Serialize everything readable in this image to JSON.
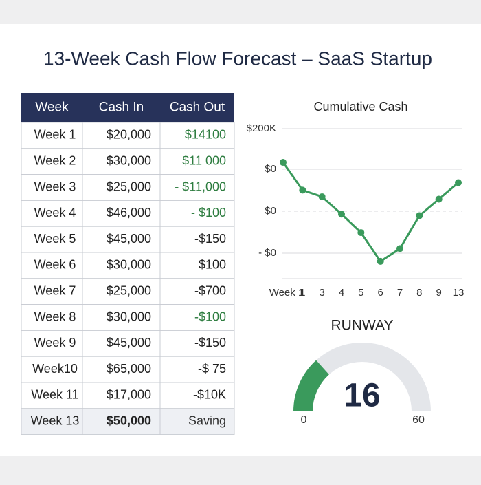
{
  "title": "13-Week Cash Flow Forecast – SaaS Startup",
  "table": {
    "headers": [
      "Week",
      "Cash In",
      "Cash Out"
    ],
    "rows": [
      [
        "Week 1",
        "$20,000",
        "$14100"
      ],
      [
        "Week 2",
        "$30,000",
        "$11 000"
      ],
      [
        "Week 3",
        "$25,000",
        "- $11,000"
      ],
      [
        "Week 4",
        "$46,000",
        "- $100"
      ],
      [
        "Week 5",
        "$45,000",
        "-$150"
      ],
      [
        "Week 6",
        "$30,000",
        "$100"
      ],
      [
        "Week 7",
        "$25,000",
        "-$700"
      ],
      [
        "Week 8",
        "$30,000",
        "-$100"
      ],
      [
        "Week 9",
        "$45,000",
        "-$150"
      ],
      [
        "Week10",
        "$65,000",
        "-$  75"
      ],
      [
        "Week 11",
        "$17,000",
        "-$10K"
      ],
      [
        "Week 13",
        "$50,000",
        "Saving"
      ]
    ],
    "cash_out_colors": [
      "#2e7d40",
      "#2e7d40",
      "#2e7d40",
      "#2e7d40",
      "#222222",
      "#222222",
      "#222222",
      "#2e7d40",
      "#222222",
      "#222222",
      "#222222",
      "#333333"
    ]
  },
  "chart_data": {
    "type": "line",
    "title": "Cumulative Cash",
    "y_labels": [
      "$200K",
      "$0",
      "$0",
      "- $0"
    ],
    "categories": [
      "Week 1",
      "1",
      "3",
      "4",
      "5",
      "6",
      "7",
      "8",
      "9",
      "13"
    ],
    "series": [
      {
        "name": "Cumulative Cash",
        "color": "#3a9a5c",
        "values": [
          77.5,
          59,
          54.6,
          43,
          30.7,
          11.5,
          20,
          42,
          53,
          64
        ]
      }
    ],
    "ylim": [
      0,
      100
    ],
    "grid": true
  },
  "gauge": {
    "title": "RUNWAY",
    "value": 16,
    "min": 0,
    "max": 60,
    "color": "#3a9a5c",
    "track_color": "#e4e6ea"
  }
}
